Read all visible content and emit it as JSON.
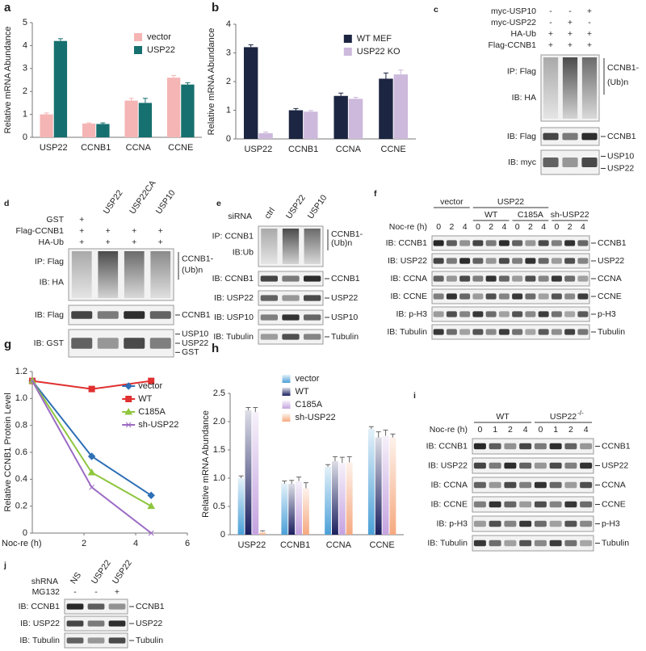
{
  "chart_data": [
    {
      "panel": "a",
      "type": "bar",
      "y_label": "Relative mRNA Abundance",
      "categories": [
        "USP22",
        "CCNB1",
        "CCNA",
        "CCNE"
      ],
      "series": [
        {
          "name": "vector",
          "color": "#f5b5b5",
          "values": [
            1.0,
            0.6,
            1.6,
            2.6
          ],
          "errors": [
            0.06,
            0.03,
            0.1,
            0.1
          ]
        },
        {
          "name": "USP22",
          "color": "#16706f",
          "values": [
            4.2,
            0.58,
            1.5,
            2.3
          ],
          "errors": [
            0.1,
            0.05,
            0.2,
            0.08
          ]
        }
      ],
      "ylim": [
        0,
        5
      ],
      "yticks": [
        0,
        1,
        2,
        3,
        4,
        5
      ],
      "legend": "upper right"
    },
    {
      "panel": "b",
      "type": "bar",
      "y_label": "Relative mRNA Abundance",
      "categories": [
        "USP22",
        "CCNB1",
        "CCNA",
        "CCNE"
      ],
      "series": [
        {
          "name": "WT MEF",
          "color": "#1c2541",
          "values": [
            3.2,
            1.0,
            1.5,
            2.1
          ],
          "errors": [
            0.08,
            0.06,
            0.1,
            0.2
          ]
        },
        {
          "name": "USP22 KO",
          "color": "#cdb9dc",
          "values": [
            0.2,
            0.95,
            1.4,
            2.25
          ],
          "errors": [
            0.04,
            0.04,
            0.05,
            0.15
          ]
        }
      ],
      "ylim": [
        0,
        4
      ],
      "yticks": [
        0,
        1,
        2,
        3,
        4
      ],
      "legend": "upper right"
    },
    {
      "panel": "g",
      "type": "line",
      "y_label": "Relative CCNB1 Protein Level",
      "x_label": "Noc-re (h)",
      "x": [
        0,
        2.3,
        4.6
      ],
      "series": [
        {
          "name": "vector",
          "color": "#2e6fb5",
          "marker": "diamond",
          "values": [
            1.13,
            0.57,
            0.28
          ]
        },
        {
          "name": "WT",
          "color": "#e03030",
          "marker": "square",
          "values": [
            1.13,
            1.07,
            1.13
          ]
        },
        {
          "name": "C185A",
          "color": "#8ec63f",
          "marker": "triangle",
          "values": [
            1.13,
            0.45,
            0.2
          ]
        },
        {
          "name": "sh-USP22",
          "color": "#9b6bc4",
          "marker": "x",
          "values": [
            1.13,
            0.34,
            0
          ]
        }
      ],
      "xlim": [
        0,
        6
      ],
      "xticks": [
        2,
        4,
        6
      ],
      "ylim": [
        0,
        1.2
      ],
      "yticks": [
        0,
        0.2,
        0.4,
        0.6,
        0.8,
        {
          "value": 1,
          "label": "1.0"
        },
        1.2
      ],
      "legend": "upper right"
    },
    {
      "panel": "h",
      "type": "bar",
      "y_label": "Relative mRNA Abundance",
      "gradient": true,
      "categories": [
        "USP22",
        "CCNB1",
        "CCNA",
        "CCNE"
      ],
      "series": [
        {
          "name": "vector",
          "color": "#4aa0d8",
          "values": [
            1.0,
            0.9,
            1.2,
            1.87
          ],
          "errors": [
            0.04,
            0.05,
            0.04,
            0.04
          ]
        },
        {
          "name": "WT",
          "color": "#1a1f5e",
          "values": [
            2.2,
            0.9,
            1.3,
            1.72
          ],
          "errors": [
            0.05,
            0.06,
            0.08,
            0.1
          ]
        },
        {
          "name": "C185A",
          "color": "#c5a3e0",
          "values": [
            2.17,
            0.95,
            1.27,
            1.75
          ],
          "errors": [
            0.08,
            0.07,
            0.1,
            0.1
          ]
        },
        {
          "name": "sh-USP22",
          "color": "#f5a97f",
          "values": [
            0.05,
            0.82,
            1.28,
            1.72
          ],
          "errors": [
            0.02,
            0.1,
            0.1,
            0.06
          ]
        }
      ],
      "ylim": [
        0,
        2.5
      ],
      "yticks": [
        0,
        0.5,
        {
          "value": 1,
          "label": "1.0"
        },
        1.5,
        {
          "value": 2,
          "label": "2.0"
        },
        2.5
      ],
      "legend": "upper center"
    }
  ],
  "blots": {
    "c": {
      "letter": "c",
      "conditions": [
        {
          "label": "myc-USP10",
          "values": [
            "-",
            "-",
            "+"
          ]
        },
        {
          "label": "myc-USP22",
          "values": [
            "-",
            "+",
            "-"
          ]
        },
        {
          "label": "HA-Ub",
          "values": [
            "+",
            "+",
            "+"
          ]
        },
        {
          "label": "Flag-CCNB1",
          "values": [
            "+",
            "+",
            "+"
          ]
        }
      ],
      "rows": [
        {
          "left": [
            "IP: Flag",
            "IB: HA"
          ],
          "right": [
            "CCNB1-",
            "(Ub)n"
          ]
        },
        {
          "left": [
            "IB: Flag"
          ],
          "right": [
            "CCNB1"
          ]
        },
        {
          "left": [
            "IB: myc"
          ],
          "right": [
            "USP10",
            "USP22"
          ]
        }
      ]
    },
    "d": {
      "letter": "d",
      "lane_labels": [
        "USP22",
        "USP22CA",
        "USP10"
      ],
      "conditions": [
        {
          "label": "GST",
          "values": [
            "+"
          ]
        },
        {
          "label": "Flag-CCNB1",
          "values": [
            "+",
            "+",
            "+",
            "+"
          ]
        },
        {
          "label": "HA-Ub",
          "values": [
            "+",
            "+",
            "+",
            "+"
          ]
        }
      ],
      "rows": [
        {
          "left": [
            "IP: Flag",
            "IB: HA"
          ],
          "right": [
            "CCNB1-",
            "(Ub)n"
          ]
        },
        {
          "left": [
            "IB: Flag"
          ],
          "right": [
            "CCNB1"
          ]
        },
        {
          "left": [
            "IB: GST"
          ],
          "right": [
            "USP10",
            "USP22",
            "GST"
          ]
        }
      ]
    },
    "e": {
      "letter": "e",
      "header": "siRNA",
      "lane_labels": [
        "ctrl",
        "USP22",
        "USP10"
      ],
      "rows": [
        {
          "left": [
            "IP: CCNB1",
            "IB:Ub"
          ],
          "right": [
            "CCNB1-",
            "(Ub)n"
          ]
        },
        {
          "left": [
            "IB: CCNB1"
          ],
          "right": [
            "CCNB1"
          ]
        },
        {
          "left": [
            "IB: USP22"
          ],
          "right": [
            "USP22"
          ]
        },
        {
          "left": [
            "IB: USP10"
          ],
          "right": [
            "USP10"
          ]
        },
        {
          "left": [
            "IB: Tubulin"
          ],
          "right": [
            "Tubulin"
          ]
        }
      ]
    },
    "f": {
      "letter": "f",
      "groups": [
        "vector",
        "USP22",
        "WT",
        "C185A",
        "sh-USP22"
      ],
      "conditions": [
        {
          "label": "Noc-re (h)",
          "values": [
            0,
            2,
            4,
            0,
            2,
            4,
            0,
            2,
            4,
            0,
            2,
            4
          ]
        }
      ],
      "rows": [
        {
          "left": [
            "IB: CCNB1"
          ],
          "right": [
            "CCNB1"
          ]
        },
        {
          "left": [
            "IB: USP22"
          ],
          "right": [
            "USP22"
          ]
        },
        {
          "left": [
            "IB: CCNA"
          ],
          "right": [
            "CCNA"
          ]
        },
        {
          "left": [
            "IB: CCNE"
          ],
          "right": [
            "CCNE"
          ]
        },
        {
          "left": [
            "IB: p-H3"
          ],
          "right": [
            "p-H3"
          ]
        },
        {
          "left": [
            "IB: Tubulin"
          ],
          "right": [
            "Tubulin"
          ]
        }
      ]
    },
    "i": {
      "letter": "i",
      "groups": [
        "WT",
        {
          "label": "USP22",
          "superscript": "-/-"
        }
      ],
      "conditions": [
        {
          "label": "Noc-re (h)",
          "values": [
            0,
            1,
            2,
            4,
            0,
            1,
            2,
            4
          ]
        }
      ],
      "rows": [
        {
          "left": [
            "IB: CCNB1"
          ],
          "right": [
            "CCNB1"
          ]
        },
        {
          "left": [
            "IB: USP22"
          ],
          "right": [
            "USP22"
          ]
        },
        {
          "left": [
            "IB: CCNA"
          ],
          "right": [
            "CCNA"
          ]
        },
        {
          "left": [
            "IB: CCNE"
          ],
          "right": [
            "CCNE"
          ]
        },
        {
          "left": [
            "IB: p-H3"
          ],
          "right": [
            "p-H3"
          ]
        },
        {
          "left": [
            "IB: Tubulin"
          ],
          "right": [
            "Tubulin"
          ]
        }
      ]
    },
    "j": {
      "letter": "j",
      "header": "shRNA",
      "lane_labels": [
        "NS",
        "USP22",
        "USP22"
      ],
      "conditions": [
        {
          "label": "MG132",
          "values": [
            "-",
            "-",
            "+"
          ]
        }
      ],
      "rows": [
        {
          "left": [
            "IB: CCNB1"
          ],
          "right": [
            "CCNB1"
          ]
        },
        {
          "left": [
            "IB: USP22"
          ],
          "right": [
            "USP22"
          ]
        },
        {
          "left": [
            "IB: Tubulin"
          ],
          "right": [
            "Tubulin"
          ]
        }
      ]
    }
  }
}
